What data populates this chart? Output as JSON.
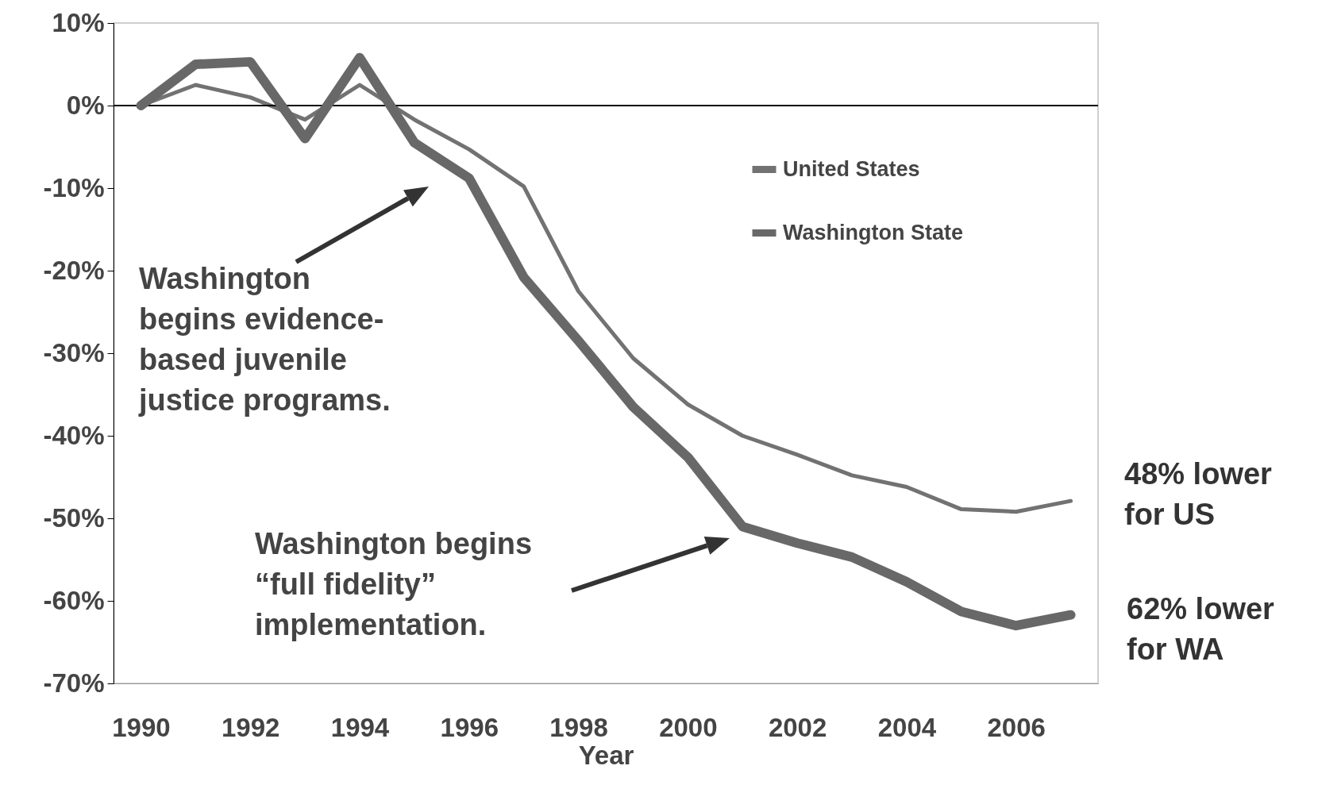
{
  "chart_data": {
    "type": "line",
    "xlabel": "Year",
    "x": [
      1990,
      1991,
      1992,
      1993,
      1994,
      1995,
      1996,
      1997,
      1998,
      1999,
      2000,
      2001,
      2002,
      2003,
      2004,
      2005,
      2006,
      2007
    ],
    "series": [
      {
        "name": "United States",
        "color": "#727272",
        "values": [
          0,
          2.5,
          1,
          -1.7,
          2.5,
          -1.7,
          -5.3,
          -9.8,
          -22.5,
          -30.6,
          -36.2,
          -40,
          -42.3,
          -44.8,
          -46.2,
          -48.9,
          -49.2,
          -47.9
        ]
      },
      {
        "name": "Washington State",
        "color": "#686868",
        "values": [
          0,
          5,
          5.3,
          -4,
          5.8,
          -4.5,
          -8.8,
          -20.8,
          -28.5,
          -36.5,
          -42.6,
          -51,
          -53,
          -54.7,
          -57.7,
          -61.3,
          -63,
          -61.7
        ]
      }
    ],
    "xlim": [
      1989.5,
      2007.5
    ],
    "xticks": [
      1990,
      1992,
      1994,
      1996,
      1998,
      2000,
      2002,
      2004,
      2006
    ],
    "ylim": [
      -70,
      10
    ],
    "yticks": [
      {
        "value": 10,
        "label": "10%"
      },
      {
        "value": 0,
        "label": "0%"
      },
      {
        "value": -10,
        "label": "-10%"
      },
      {
        "value": -20,
        "label": "-20%"
      },
      {
        "value": -30,
        "label": "-30%"
      },
      {
        "value": -40,
        "label": "-40%"
      },
      {
        "value": -50,
        "label": "-50%"
      },
      {
        "value": -60,
        "label": "-60%"
      },
      {
        "value": -70,
        "label": "-70%"
      }
    ],
    "ref_lines": [
      {
        "axis": "y",
        "value": 0,
        "color": "#000000"
      }
    ],
    "grid": false,
    "legend": "top right",
    "annotations": [
      "Washington\nbegins evidence-\nbased juvenile\njustice programs.",
      "Washington begins\n“full fidelity”\nimplementation.",
      "48% lower\nfor US",
      "62% lower\nfor WA"
    ]
  }
}
